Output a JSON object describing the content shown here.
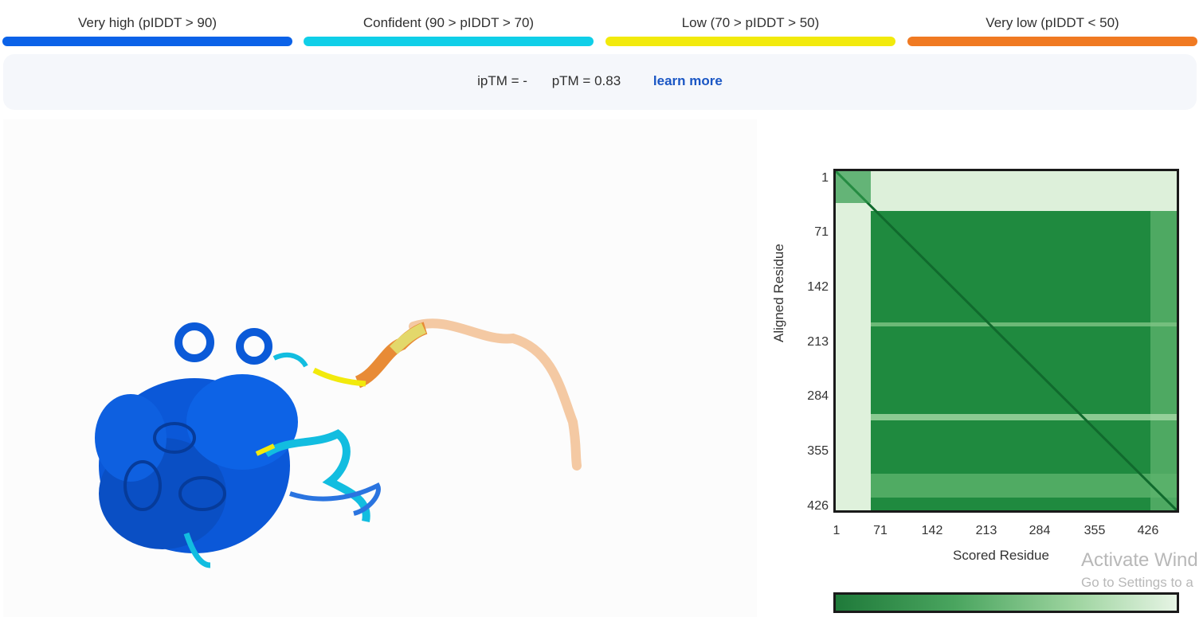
{
  "legend": {
    "items": [
      {
        "label": "Very high (pIDDT > 90)",
        "color": "#0b62e8"
      },
      {
        "label": "Confident (90 > pIDDT > 70)",
        "color": "#10cfe8"
      },
      {
        "label": "Low (70 > pIDDT > 50)",
        "color": "#f2ea0c"
      },
      {
        "label": "Very low (pIDDT < 50)",
        "color": "#f07a22"
      }
    ]
  },
  "scores": {
    "iptm": "ipTM = -",
    "ptm": "pTM = 0.83",
    "learn_more": "learn more"
  },
  "pae": {
    "y_axis_label": "Aligned Residue",
    "x_axis_label": "Scored Residue",
    "y_ticks": [
      "1",
      "71",
      "142",
      "213",
      "284",
      "355",
      "426"
    ],
    "x_ticks": [
      "1",
      "71",
      "142",
      "213",
      "284",
      "355",
      "426"
    ],
    "colors": {
      "low_error": "#1f7a3a",
      "high_error": "#e6f4e4"
    }
  },
  "watermark": {
    "title": "Activate Wind",
    "subtitle": "Go to Settings to a"
  }
}
